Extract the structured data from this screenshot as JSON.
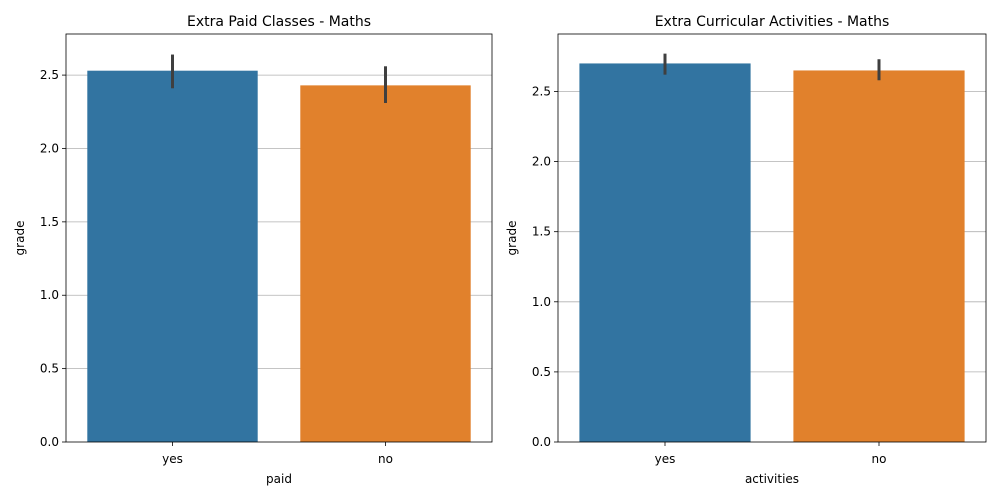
{
  "chart_data": [
    {
      "type": "bar",
      "title": "Extra Paid Classes - Maths",
      "xlabel": "paid",
      "ylabel": "grade",
      "categories": [
        "yes",
        "no"
      ],
      "values": [
        2.53,
        2.43
      ],
      "error_low": [
        2.41,
        2.31
      ],
      "error_high": [
        2.64,
        2.56
      ],
      "ylim": [
        0,
        2.78
      ],
      "yticks": [
        0.0,
        0.5,
        1.0,
        1.5,
        2.0,
        2.5
      ],
      "ytick_labels": [
        "0.0",
        "0.5",
        "1.0",
        "1.5",
        "2.0",
        "2.5"
      ],
      "grid": "y",
      "colors": [
        "#3274a1",
        "#e1812c"
      ],
      "error_color": "#3f3f3f"
    },
    {
      "type": "bar",
      "title": "Extra Curricular Activities - Maths",
      "xlabel": "activities",
      "ylabel": "grade",
      "categories": [
        "yes",
        "no"
      ],
      "values": [
        2.7,
        2.65
      ],
      "error_low": [
        2.62,
        2.58
      ],
      "error_high": [
        2.77,
        2.73
      ],
      "ylim": [
        0,
        2.91
      ],
      "yticks": [
        0.0,
        0.5,
        1.0,
        1.5,
        2.0,
        2.5
      ],
      "ytick_labels": [
        "0.0",
        "0.5",
        "1.0",
        "1.5",
        "2.0",
        "2.5"
      ],
      "grid": "y",
      "colors": [
        "#3274a1",
        "#e1812c"
      ],
      "error_color": "#3f3f3f"
    }
  ]
}
